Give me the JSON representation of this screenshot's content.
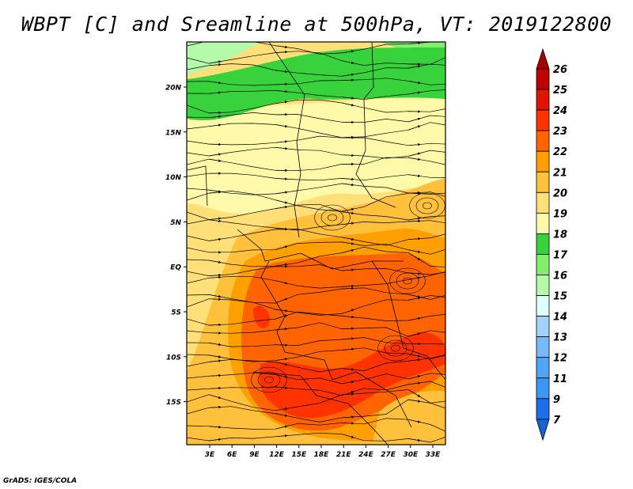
{
  "title": "WBPT [C] and Sreamline at 500hPa, VT: 2019122800",
  "credit": "GrADS: IGES/COLA",
  "map": {
    "lat_labels": [
      "20N",
      "15N",
      "10N",
      "5N",
      "EQ",
      "5S",
      "10S",
      "15S"
    ],
    "lon_labels": [
      "3E",
      "6E",
      "9E",
      "12E",
      "15E",
      "18E",
      "21E",
      "24E",
      "27E",
      "30E",
      "33E"
    ]
  },
  "colorbar": {
    "labels": [
      "26",
      "25",
      "24",
      "23",
      "22",
      "21",
      "20",
      "19",
      "18",
      "17",
      "16",
      "15",
      "14",
      "13",
      "12",
      "11",
      "9",
      "7"
    ],
    "colors": [
      "#c00000",
      "#e11400",
      "#ff3200",
      "#ff6400",
      "#ffa000",
      "#ffc03c",
      "#ffe078",
      "#fffaaa",
      "#37d23c",
      "#82f06e",
      "#b4faaa",
      "#e1ffff",
      "#a0d2fa",
      "#78b9fa",
      "#50a5f5",
      "#3c96f5",
      "#1e6eeb"
    ],
    "top_arrow_color": "#a50000",
    "bottom_arrow_color": "#1464d2"
  }
}
